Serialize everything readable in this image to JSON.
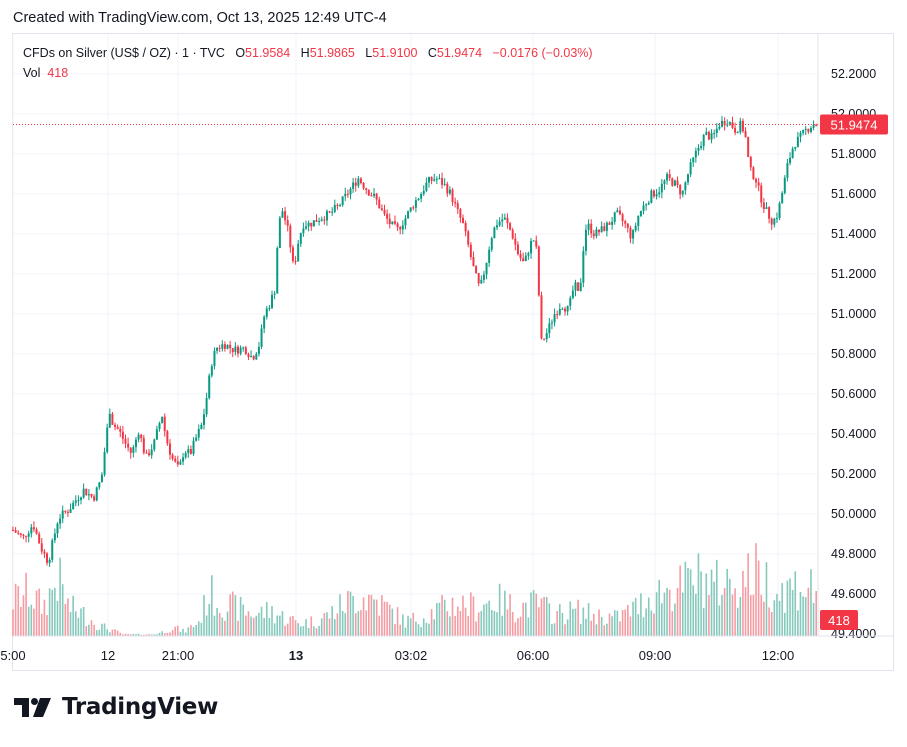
{
  "header": {
    "created_text": "Created with TradingView.com, Oct 13, 2025 12:49 UTC-4"
  },
  "legend": {
    "symbol": "CFDs on Silver (US$ / OZ) · 1 · TVC",
    "o_label": "O",
    "o_value": "51.9584",
    "h_label": "H",
    "h_value": "51.9865",
    "l_label": "L",
    "l_value": "51.9100",
    "c_label": "C",
    "c_value": "51.9474",
    "change": "−0.0176 (−0.03%)",
    "vol_label": "Vol",
    "vol_value": "418"
  },
  "colors": {
    "up": "#089981",
    "down": "#f23645",
    "vol_up": "#85c9bd",
    "vol_down": "#f59ba2",
    "grid": "#f0f3fa",
    "text": "#131722"
  },
  "branding": {
    "logo_text": "TradingView",
    "logo_icon": "tradingview-logo-icon"
  },
  "chart_data": {
    "type": "candlestick",
    "title": "CFDs on Silver (US$ / OZ) · 1 · TVC",
    "ylim": [
      49.4,
      52.3
    ],
    "y_ticks": [
      "52.2000",
      "52.0000",
      "51.8000",
      "51.6000",
      "51.4000",
      "51.2000",
      "51.0000",
      "50.8000",
      "50.6000",
      "50.4000",
      "50.2000",
      "50.0000",
      "49.8000",
      "49.6000",
      "49.4000"
    ],
    "x_ticks": [
      "5:00",
      "12",
      "21:00",
      "13",
      "03:02",
      "06:00",
      "09:00",
      "12:00"
    ],
    "x_ticks_bold": [
      false,
      false,
      false,
      true,
      false,
      false,
      false,
      false
    ],
    "last_price": 51.9474,
    "last_price_label": "51.9474",
    "last_volume": 418,
    "last_volume_label": "418",
    "series": [
      {
        "name": "Price",
        "kind": "close_path",
        "points": [
          [
            0,
            49.92
          ],
          [
            10,
            49.88
          ],
          [
            20,
            49.95
          ],
          [
            28,
            49.83
          ],
          [
            35,
            49.76
          ],
          [
            45,
            49.98
          ],
          [
            55,
            50.02
          ],
          [
            70,
            50.12
          ],
          [
            80,
            50.08
          ],
          [
            88,
            50.18
          ],
          [
            93,
            50.4
          ],
          [
            97,
            50.55
          ],
          [
            99,
            50.45
          ],
          [
            105,
            50.42
          ],
          [
            112,
            50.35
          ],
          [
            118,
            50.3
          ],
          [
            125,
            50.42
          ],
          [
            132,
            50.28
          ],
          [
            140,
            50.35
          ],
          [
            148,
            50.5
          ],
          [
            152,
            50.38
          ],
          [
            158,
            50.28
          ],
          [
            165,
            50.22
          ],
          [
            170,
            50.32
          ],
          [
            176,
            50.3
          ],
          [
            182,
            50.38
          ],
          [
            188,
            50.45
          ],
          [
            193,
            50.6
          ],
          [
            197,
            50.75
          ],
          [
            202,
            50.83
          ],
          [
            210,
            50.85
          ],
          [
            220,
            50.82
          ],
          [
            230,
            50.83
          ],
          [
            238,
            50.78
          ],
          [
            245,
            50.85
          ],
          [
            250,
            51.0
          ],
          [
            255,
            51.05
          ],
          [
            260,
            51.12
          ],
          [
            264,
            51.45
          ],
          [
            268,
            51.52
          ],
          [
            274,
            51.4
          ],
          [
            279,
            51.22
          ],
          [
            283,
            51.35
          ],
          [
            288,
            51.45
          ],
          [
            295,
            51.45
          ],
          [
            305,
            51.48
          ],
          [
            315,
            51.5
          ],
          [
            325,
            51.55
          ],
          [
            335,
            51.62
          ],
          [
            343,
            51.68
          ],
          [
            352,
            51.62
          ],
          [
            360,
            51.58
          ],
          [
            368,
            51.5
          ],
          [
            375,
            51.45
          ],
          [
            382,
            51.42
          ],
          [
            390,
            51.48
          ],
          [
            398,
            51.55
          ],
          [
            405,
            51.6
          ],
          [
            412,
            51.66
          ],
          [
            420,
            51.68
          ],
          [
            428,
            51.65
          ],
          [
            435,
            51.6
          ],
          [
            441,
            51.52
          ],
          [
            447,
            51.45
          ],
          [
            452,
            51.35
          ],
          [
            458,
            51.22
          ],
          [
            464,
            51.12
          ],
          [
            470,
            51.25
          ],
          [
            475,
            51.38
          ],
          [
            480,
            51.45
          ],
          [
            488,
            51.48
          ],
          [
            496,
            51.4
          ],
          [
            502,
            51.3
          ],
          [
            508,
            51.25
          ],
          [
            514,
            51.35
          ],
          [
            519,
            51.38
          ],
          [
            522,
            51.2
          ],
          [
            524,
            50.85
          ],
          [
            530,
            50.9
          ],
          [
            538,
            51.0
          ],
          [
            545,
            51.05
          ],
          [
            552,
            51.02
          ],
          [
            558,
            51.15
          ],
          [
            563,
            51.08
          ],
          [
            566,
            51.3
          ],
          [
            570,
            51.45
          ],
          [
            578,
            51.4
          ],
          [
            585,
            51.42
          ],
          [
            592,
            51.45
          ],
          [
            600,
            51.5
          ],
          [
            608,
            51.45
          ],
          [
            615,
            51.38
          ],
          [
            622,
            51.5
          ],
          [
            628,
            51.55
          ],
          [
            635,
            51.6
          ],
          [
            642,
            51.62
          ],
          [
            650,
            51.68
          ],
          [
            658,
            51.65
          ],
          [
            665,
            51.6
          ],
          [
            672,
            51.72
          ],
          [
            680,
            51.82
          ],
          [
            688,
            51.9
          ],
          [
            695,
            51.88
          ],
          [
            702,
            51.95
          ],
          [
            710,
            51.97
          ],
          [
            718,
            51.92
          ],
          [
            724,
            51.95
          ],
          [
            728,
            51.88
          ],
          [
            732,
            51.72
          ],
          [
            738,
            51.68
          ],
          [
            742,
            51.6
          ],
          [
            748,
            51.52
          ],
          [
            755,
            51.46
          ],
          [
            760,
            51.5
          ],
          [
            765,
            51.62
          ],
          [
            770,
            51.75
          ],
          [
            776,
            51.85
          ],
          [
            782,
            51.88
          ],
          [
            788,
            51.92
          ],
          [
            795,
            51.95
          ],
          [
            800,
            51.947
          ]
        ]
      },
      {
        "name": "Volume",
        "kind": "volume_envelope",
        "points": [
          [
            0,
            50
          ],
          [
            15,
            60
          ],
          [
            30,
            40
          ],
          [
            45,
            80
          ],
          [
            55,
            40
          ],
          [
            70,
            30
          ],
          [
            85,
            15
          ],
          [
            95,
            10
          ],
          [
            110,
            2
          ],
          [
            140,
            2
          ],
          [
            150,
            6
          ],
          [
            160,
            12
          ],
          [
            170,
            6
          ],
          [
            185,
            20
          ],
          [
            195,
            60
          ],
          [
            205,
            45
          ],
          [
            220,
            40
          ],
          [
            240,
            30
          ],
          [
            255,
            35
          ],
          [
            270,
            25
          ],
          [
            285,
            18
          ],
          [
            300,
            20
          ],
          [
            315,
            30
          ],
          [
            330,
            45
          ],
          [
            345,
            55
          ],
          [
            360,
            50
          ],
          [
            375,
            35
          ],
          [
            390,
            20
          ],
          [
            405,
            25
          ],
          [
            420,
            35
          ],
          [
            440,
            45
          ],
          [
            460,
            40
          ],
          [
            480,
            50
          ],
          [
            500,
            38
          ],
          [
            520,
            45
          ],
          [
            540,
            30
          ],
          [
            560,
            35
          ],
          [
            580,
            28
          ],
          [
            600,
            25
          ],
          [
            620,
            40
          ],
          [
            640,
            60
          ],
          [
            660,
            65
          ],
          [
            680,
            80
          ],
          [
            700,
            70
          ],
          [
            720,
            75
          ],
          [
            740,
            88
          ],
          [
            760,
            60
          ],
          [
            780,
            70
          ],
          [
            800,
            62
          ]
        ]
      }
    ]
  }
}
